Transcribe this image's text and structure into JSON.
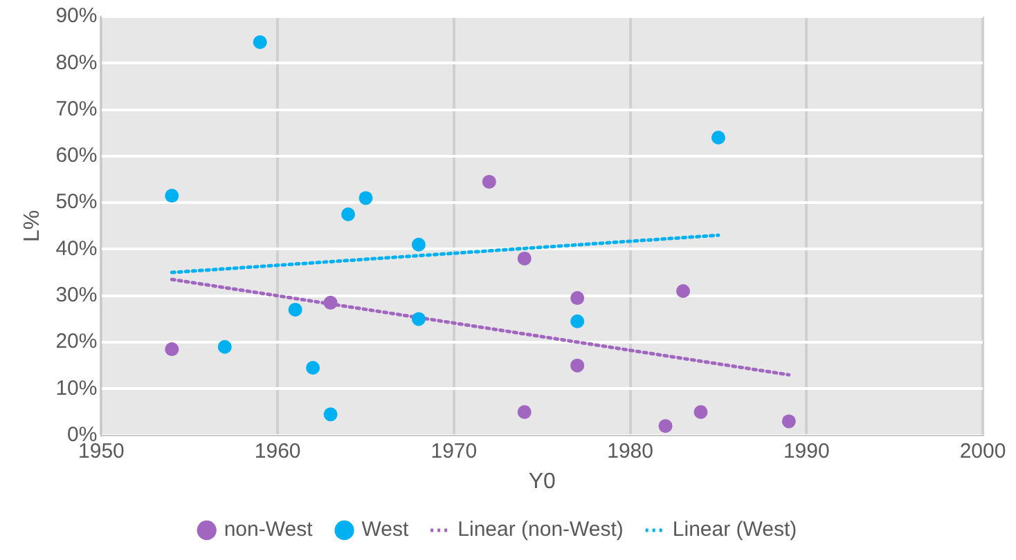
{
  "chart_data": {
    "type": "scatter",
    "xlabel": "Y0",
    "ylabel": "L%",
    "xlim": [
      1950,
      2000
    ],
    "xticks": [
      1950,
      1960,
      1970,
      1980,
      1990,
      2000
    ],
    "ylim": [
      0,
      90
    ],
    "yticks": [
      {
        "value": 0,
        "label": "0%"
      },
      {
        "value": 10,
        "label": "10%"
      },
      {
        "value": 20,
        "label": "20%"
      },
      {
        "value": 30,
        "label": "30%"
      },
      {
        "value": 40,
        "label": "40%"
      },
      {
        "value": 50,
        "label": "50%"
      },
      {
        "value": 60,
        "label": "60%"
      },
      {
        "value": 70,
        "label": "70%"
      },
      {
        "value": 80,
        "label": "80%"
      },
      {
        "value": 90,
        "label": "90%"
      }
    ],
    "grid": true,
    "legend": "bottom",
    "marker": "circle",
    "series": [
      {
        "name": "non-West",
        "color": "#a066c0",
        "x": [
          1954,
          1963,
          1972,
          1974,
          1974,
          1977,
          1977,
          1983,
          1982,
          1984,
          1989
        ],
        "values": [
          18.5,
          28.5,
          54.5,
          38,
          5,
          29.5,
          15,
          31,
          2,
          5,
          3
        ]
      },
      {
        "name": "West",
        "color": "#00b0f0",
        "x": [
          1954,
          1957,
          1959,
          1961,
          1962,
          1963,
          1964,
          1965,
          1968,
          1968,
          1977,
          1985
        ],
        "values": [
          51.5,
          19,
          84.5,
          27,
          14.5,
          4.5,
          47.5,
          51,
          41,
          25,
          24.5,
          64
        ]
      },
      {
        "name": "Linear (non-West)",
        "type": "line",
        "line_style": "dotted",
        "marker": "none",
        "color": "#a066c0",
        "x": [
          1954,
          1989
        ],
        "values": [
          33.5,
          13
        ]
      },
      {
        "name": "Linear (West)",
        "type": "line",
        "line_style": "dotted",
        "marker": "none",
        "color": "#00b0f0",
        "x": [
          1954,
          1985
        ],
        "values": [
          35,
          43
        ]
      }
    ]
  }
}
